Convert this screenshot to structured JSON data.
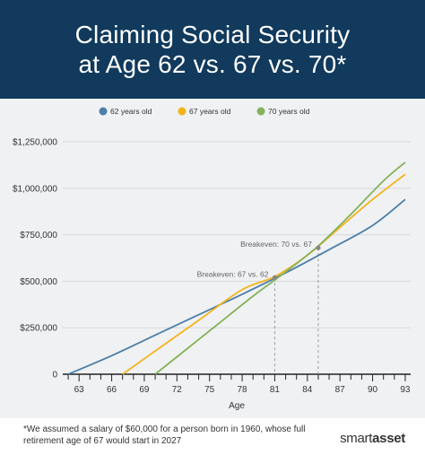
{
  "header": {
    "title_line1": "Claiming Social Security",
    "title_line2": "at Age 62 vs. 67 vs. 70*"
  },
  "colors": {
    "header_bg": "#113a5c",
    "series_62": "#4a7fa8",
    "series_67": "#f2b41b",
    "series_70": "#86b25a"
  },
  "chart_data": {
    "type": "line",
    "title": "Claiming Social Security at Age 62 vs. 67 vs. 70*",
    "xlabel": "Age",
    "ylabel": "",
    "xlim": [
      61.5,
      93.5
    ],
    "ylim": [
      0,
      1250000
    ],
    "x_ticks": [
      63,
      66,
      69,
      72,
      75,
      78,
      81,
      84,
      87,
      90,
      93
    ],
    "y_ticks": [
      0,
      250000,
      500000,
      750000,
      1000000,
      1250000
    ],
    "y_tick_labels": [
      "0",
      "$250,000",
      "$500,000",
      "$750,000",
      "$1,000,000",
      "$1,250,000"
    ],
    "grid": "horizontal",
    "legend_position": "top-center",
    "series": [
      {
        "name": "62 years old",
        "color": "#4a7fa8",
        "x": [
          62,
          66,
          70,
          74,
          78,
          82,
          86,
          90,
          93
        ],
        "y": [
          0,
          100000,
          210000,
          320000,
          430000,
          545000,
          670000,
          800000,
          940000
        ]
      },
      {
        "name": "67 years old",
        "color": "#f2b41b",
        "x": [
          67,
          70,
          74,
          78,
          81,
          84,
          87,
          90,
          93
        ],
        "y": [
          0,
          125000,
          290000,
          455000,
          525000,
          640000,
          790000,
          940000,
          1075000
        ]
      },
      {
        "name": "70 years old",
        "color": "#86b25a",
        "x": [
          70,
          73,
          76,
          79,
          82,
          85,
          88,
          91,
          93
        ],
        "y": [
          0,
          140000,
          280000,
          420000,
          550000,
          690000,
          860000,
          1040000,
          1140000
        ]
      }
    ],
    "annotations": [
      {
        "label": "Breakeven: 67 vs. 62",
        "x": 81,
        "y": 520000
      },
      {
        "label": "Breakeven: 70 vs. 67",
        "x": 85,
        "y": 680000
      }
    ]
  },
  "footer": {
    "footnote": "*We assumed a salary of $60,000 for a person born in 1960, whose full retirement age of 67 would start in 2027",
    "brand_part1": "smart",
    "brand_part2": "asset"
  }
}
